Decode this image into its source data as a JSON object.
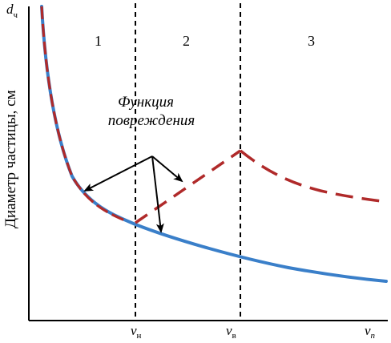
{
  "y_axis": {
    "label": "Диаметр частицы, см",
    "top_label_main": "d",
    "top_label_sub": "ч"
  },
  "x_ticks": [
    {
      "main": "v",
      "sub": "н"
    },
    {
      "main": "v",
      "sub": "в"
    },
    {
      "main": "v",
      "sub": "п"
    }
  ],
  "regions": [
    "1",
    "2",
    "3"
  ],
  "annotation": {
    "line1": "Функция",
    "line2": "повреждения"
  },
  "colors": {
    "blue_curve": "#3a7fc9",
    "damage_curve": "#b02a2a",
    "axis": "#000000"
  }
}
